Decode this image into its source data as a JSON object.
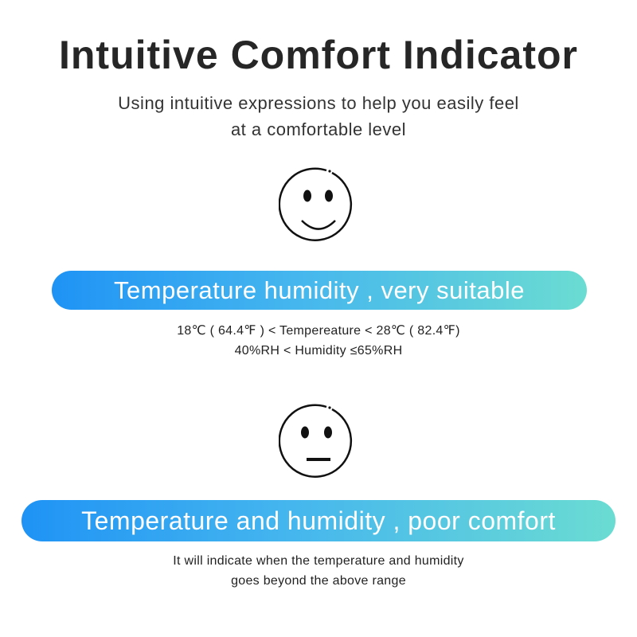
{
  "title": "Intuitive Comfort Indicator",
  "subtitle": [
    "Using intuitive expressions to help you easily feel",
    "at a comfortable level"
  ],
  "good": {
    "icon": "smiley-face-icon",
    "banner": "Temperature humidity , very suitable",
    "lines": [
      "18℃ ( 64.4℉ ) < Tempereature < 28℃ ( 82.4℉)",
      "40%RH < Humidity ≤65%RH"
    ]
  },
  "poor": {
    "icon": "neutral-face-icon",
    "banner": "Temperature and humidity , poor comfort",
    "lines": [
      "It will indicate when the temperature and humidity",
      "goes beyond the above range"
    ]
  },
  "colors": {
    "gradient_start": "#1f93f5",
    "gradient_end": "#6bdcd2"
  }
}
